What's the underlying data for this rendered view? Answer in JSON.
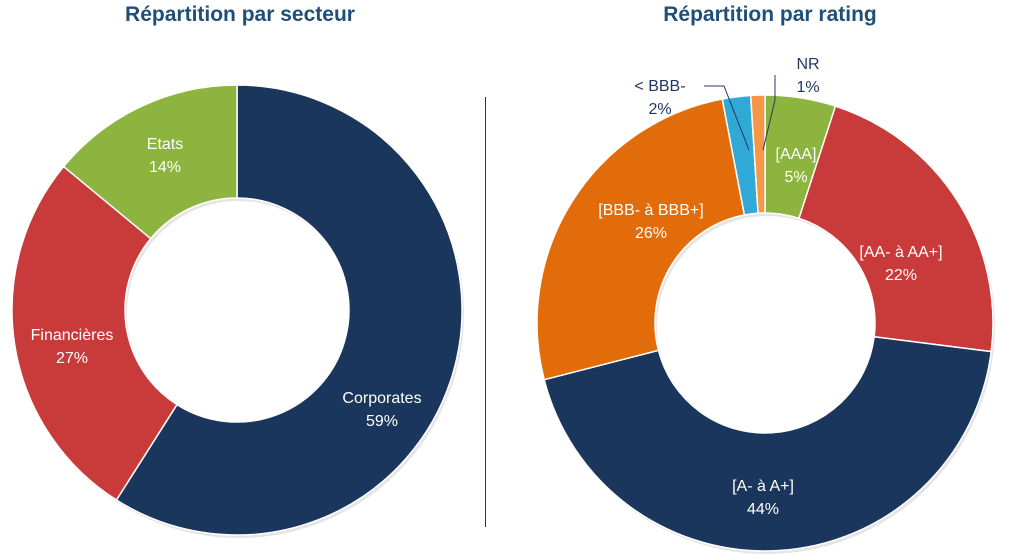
{
  "chart_data": [
    {
      "type": "pie",
      "variant": "donut",
      "title": "Répartition par secteur",
      "categories": [
        "Corporates",
        "Financières",
        "Etats"
      ],
      "values": [
        59,
        27,
        14
      ],
      "value_labels": [
        "59%",
        "27%",
        "14%"
      ],
      "colors": [
        "#1b365d",
        "#c93a3a",
        "#8db43e"
      ],
      "label_colors": [
        "#ffffff",
        "#ffffff",
        "#ffffff"
      ],
      "start_angle_deg": 0,
      "direction": "clockwise",
      "legend": "none"
    },
    {
      "type": "pie",
      "variant": "donut",
      "title": "Répartition par rating",
      "categories": [
        "[AAA]",
        "[AA- à AA+]",
        "[A- à A+]",
        "[BBB- à BBB+]",
        "< BBB-",
        "NR"
      ],
      "values": [
        5,
        22,
        44,
        26,
        2,
        1
      ],
      "value_labels": [
        "5%",
        "22%",
        "44%",
        "26%",
        "2%",
        "1%"
      ],
      "colors": [
        "#8db43e",
        "#c93a3a",
        "#1b365d",
        "#e36c0a",
        "#31a9d6",
        "#f79646"
      ],
      "label_colors": [
        "#ffffff",
        "#ffffff",
        "#ffffff",
        "#ffffff",
        "#1f3864",
        "#1f3864"
      ],
      "start_angle_deg": 0,
      "direction": "clockwise",
      "legend": "none"
    }
  ]
}
